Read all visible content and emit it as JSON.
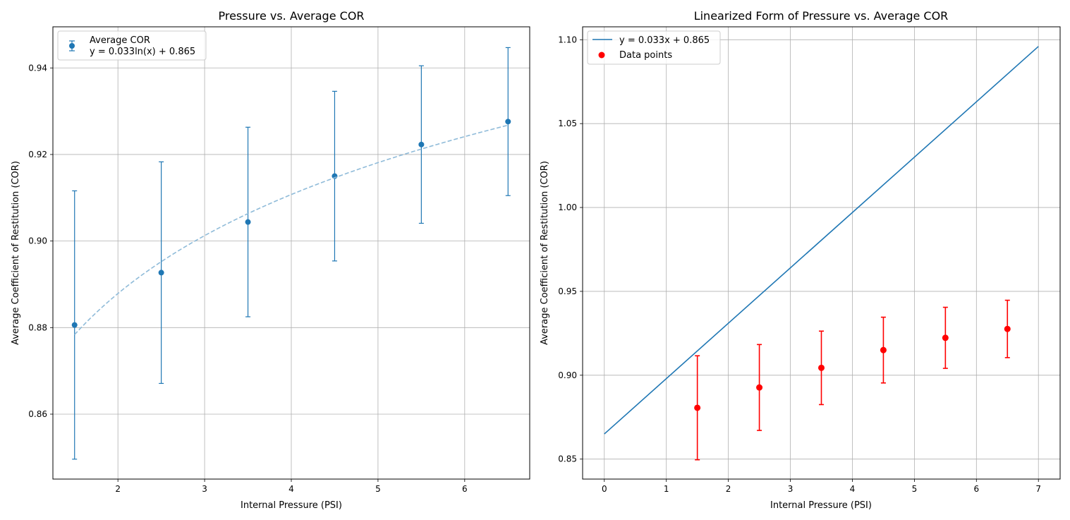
{
  "chart_data": [
    {
      "type": "scatter",
      "title": "Pressure vs. Average COR",
      "xlabel": "Internal Pressure (PSI)",
      "ylabel": "Average Coefficient of Restitution (COR)",
      "xlim": [
        1.25,
        6.75
      ],
      "ylim": [
        0.845,
        0.9495
      ],
      "xticks": [
        2,
        3,
        4,
        5,
        6
      ],
      "yticks": [
        0.86,
        0.88,
        0.9,
        0.92,
        0.94
      ],
      "grid": true,
      "legend_position": "top-left",
      "series": [
        {
          "name": "Average COR",
          "kind": "errorbar",
          "color": "#1f77b4",
          "x": [
            1.5,
            2.5,
            3.5,
            4.5,
            5.5,
            6.5
          ],
          "y": [
            0.8806,
            0.8927,
            0.9044,
            0.915,
            0.9223,
            0.9276
          ],
          "yerr": [
            0.031,
            0.0256,
            0.0219,
            0.0196,
            0.0182,
            0.0171
          ]
        },
        {
          "name": "y = 0.033ln(x) + 0.865",
          "kind": "fit_curve",
          "style": "dashed",
          "color": "#8fbbd9",
          "function": "0.033*ln(x)+0.865",
          "x_range": [
            1.5,
            6.5
          ]
        }
      ],
      "legend": [
        {
          "label": "Average COR",
          "marker": "errorbar-point",
          "color": "#1f77b4"
        },
        {
          "label": "y = 0.033ln(x) + 0.865",
          "marker": "none",
          "color": "#1f77b4"
        }
      ]
    },
    {
      "type": "line",
      "title": "Linearized Form of Pressure vs. Average COR",
      "xlabel": "Internal Pressure (PSI)",
      "ylabel": "Average Coefficient of Restitution (COR)",
      "xlim": [
        -0.35,
        7.35
      ],
      "ylim": [
        0.8381,
        1.1077
      ],
      "xticks": [
        0,
        1,
        2,
        3,
        4,
        5,
        6,
        7
      ],
      "yticks": [
        0.85,
        0.9,
        0.95,
        1.0,
        1.05,
        1.1
      ],
      "ytick_labels": [
        "0.85",
        "0.90",
        "0.95",
        "1.00",
        "1.05",
        "1.10"
      ],
      "grid": true,
      "legend_position": "top-left",
      "series": [
        {
          "name": "y = 0.033x + 0.865",
          "kind": "line",
          "color": "#1f77b4",
          "x": [
            0,
            7
          ],
          "y": [
            0.865,
            1.096
          ]
        },
        {
          "name": "Data points",
          "kind": "errorbar",
          "color": "#ff0000",
          "x": [
            1.5,
            2.5,
            3.5,
            4.5,
            5.5,
            6.5
          ],
          "y": [
            0.8806,
            0.8927,
            0.9044,
            0.915,
            0.9223,
            0.9276
          ],
          "yerr": [
            0.031,
            0.0256,
            0.0219,
            0.0196,
            0.0182,
            0.0171
          ]
        }
      ],
      "legend": [
        {
          "label": "y = 0.033x + 0.865",
          "marker": "line",
          "color": "#1f77b4"
        },
        {
          "label": "Data points",
          "marker": "dot",
          "color": "#ff0000"
        }
      ]
    }
  ]
}
